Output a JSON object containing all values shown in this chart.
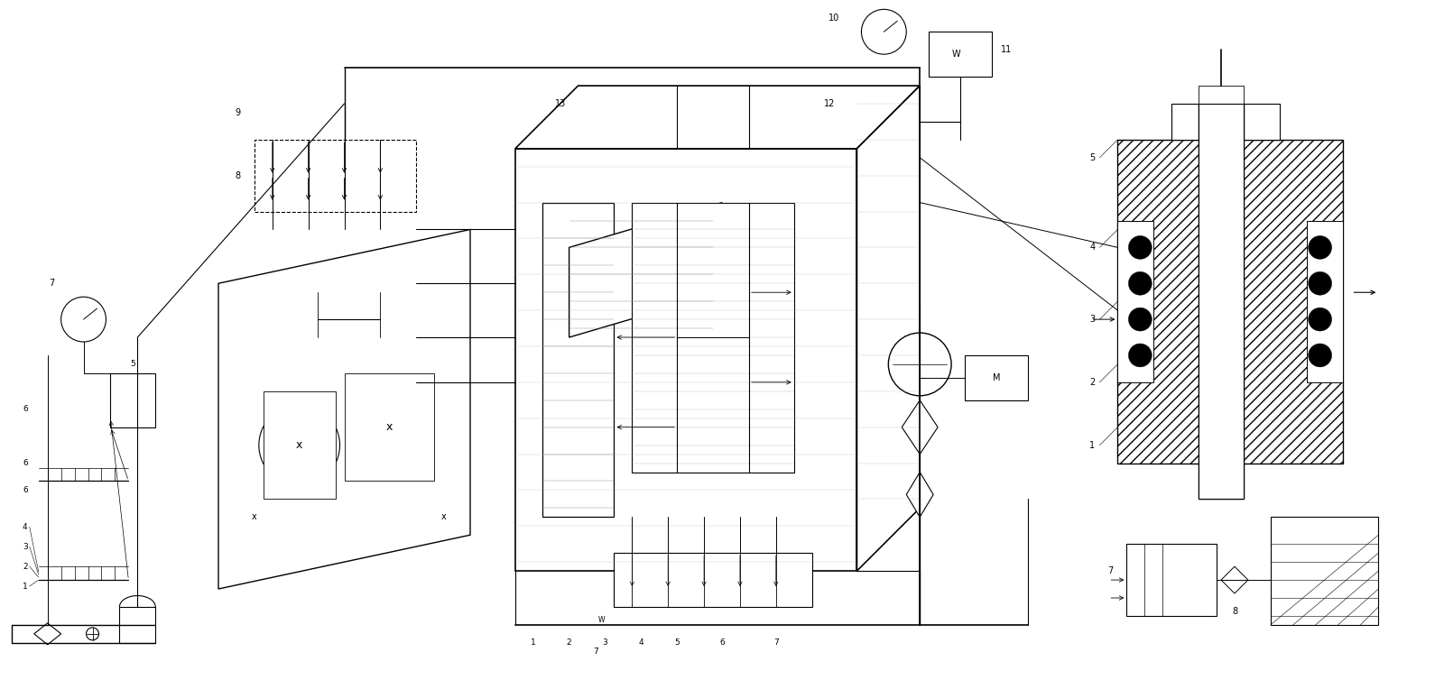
{
  "bg": "#ffffff",
  "lc": "#000000",
  "fig_w": 16.0,
  "fig_h": 7.74,
  "nums_top": [
    "10",
    "11",
    "12",
    "13",
    "9",
    "8",
    "7"
  ],
  "nums_bot_center": [
    "1",
    "2",
    "3",
    "4",
    "5",
    "6",
    "7"
  ],
  "nums_left": [
    "1",
    "2",
    "3",
    "4",
    "5",
    "6",
    "7"
  ],
  "nums_right_top": [
    "1",
    "2",
    "3",
    "4",
    "5"
  ],
  "nums_right_bot": [
    "7",
    "8"
  ]
}
